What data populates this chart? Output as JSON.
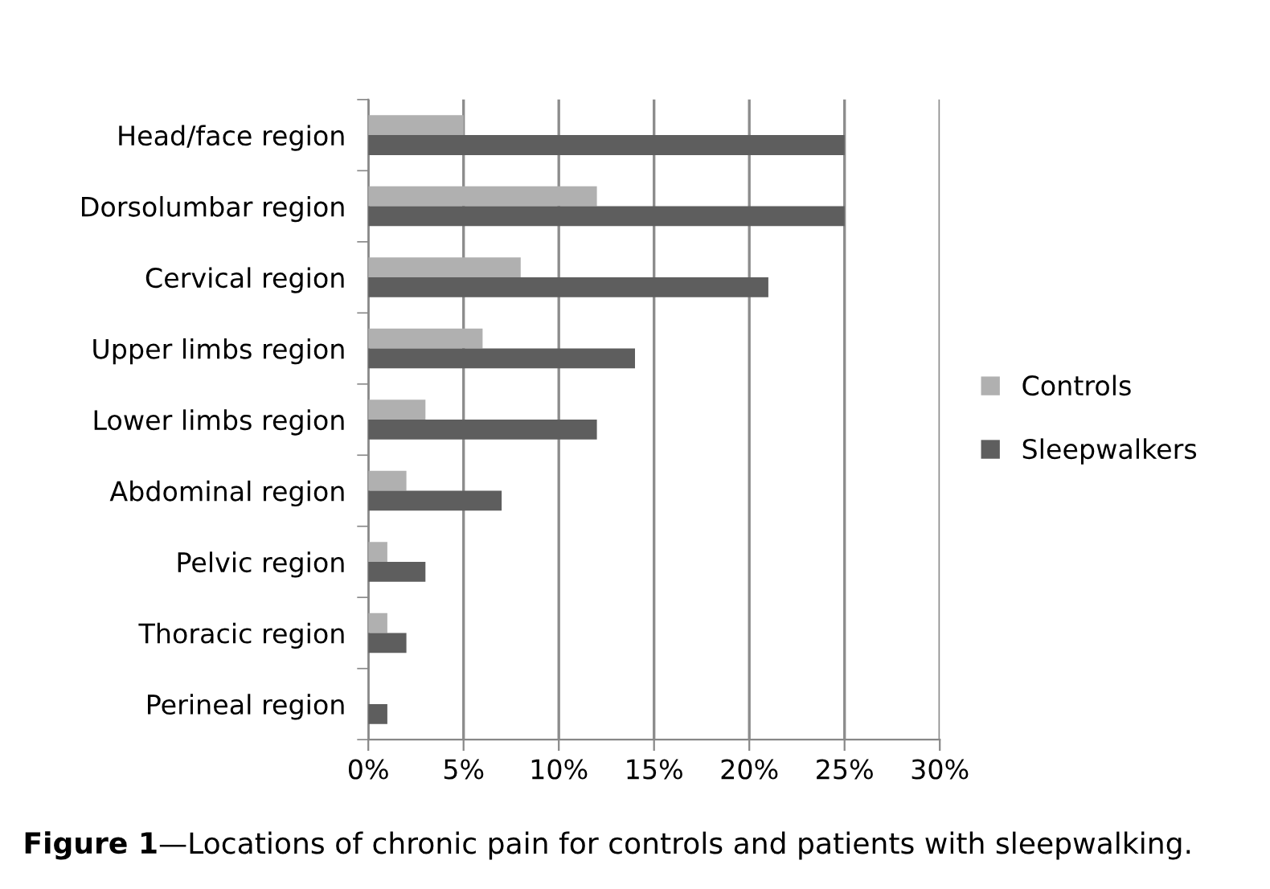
{
  "chart_data": {
    "type": "bar",
    "orientation": "horizontal",
    "categories": [
      "Head/face region",
      "Dorsolumbar region",
      "Cervical region",
      "Upper limbs region",
      "Lower limbs region",
      "Abdominal region",
      "Pelvic region",
      "Thoracic region",
      "Perineal region"
    ],
    "series": [
      {
        "name": "Controls",
        "color": "#b0b0b0",
        "values": [
          5,
          12,
          8,
          6,
          3,
          2,
          1,
          1,
          0
        ]
      },
      {
        "name": "Sleepwalkers",
        "color": "#5e5e5e",
        "values": [
          25,
          25,
          21,
          14,
          12,
          7,
          3,
          2,
          1
        ]
      }
    ],
    "xlim": [
      0,
      30
    ],
    "xticks": [
      {
        "value": 0,
        "label": "0%"
      },
      {
        "value": 5,
        "label": "5%"
      },
      {
        "value": 10,
        "label": "10%"
      },
      {
        "value": 15,
        "label": "15%"
      },
      {
        "value": 20,
        "label": "20%"
      },
      {
        "value": 25,
        "label": "25%"
      },
      {
        "value": 30,
        "label": "30%"
      }
    ],
    "grid": "x",
    "legend": "right",
    "annotations": [
      "Figure 1",
      "—Locations of chronic pain for controls and patients with sleepwalking."
    ]
  }
}
